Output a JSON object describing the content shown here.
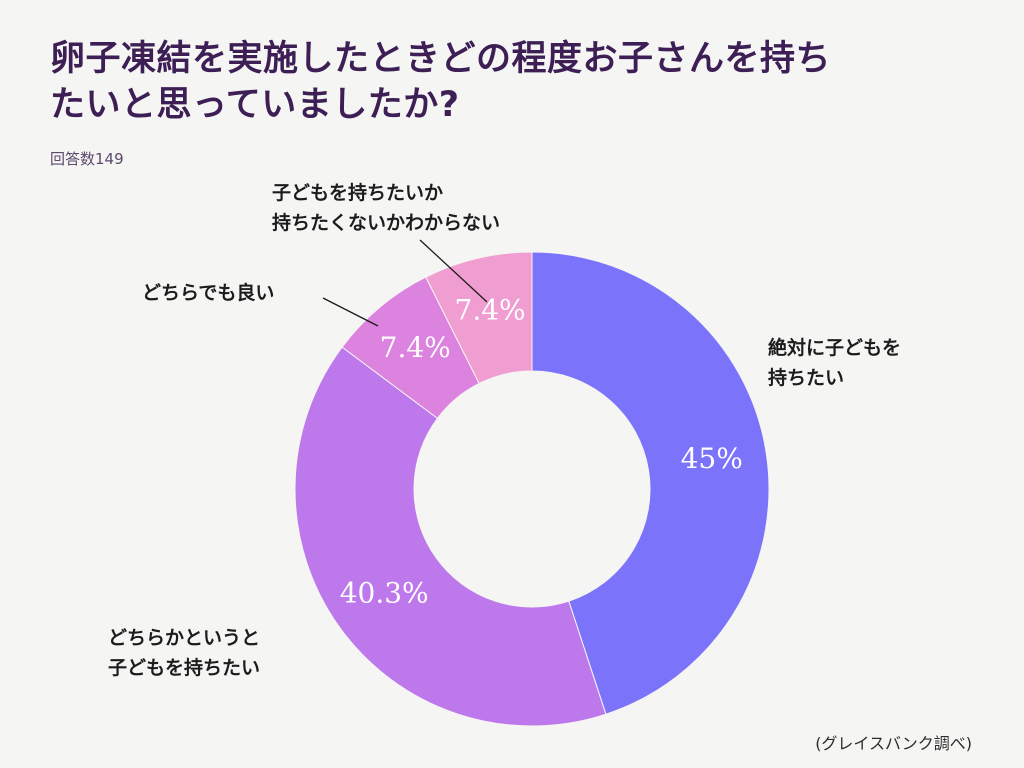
{
  "title_line1": "卵子凍結を実施したときどの程度お子さんを持ち",
  "title_line2": "たいと思っていましたか?",
  "subtitle": "回答数149",
  "source": "(グレイスバンク調べ)",
  "chart_data": {
    "type": "pie",
    "donut": true,
    "categories": [
      "絶対に子どもを持ちたい",
      "どちらかというと子どもを持ちたい",
      "どちらでも良い",
      "子どもを持ちたいか持ちたくないかわからない"
    ],
    "values": [
      45,
      40.3,
      7.4,
      7.4
    ],
    "value_labels": [
      "45%",
      "40.3%",
      "7.4%",
      "7.4%"
    ],
    "colors": [
      "#7b74fb",
      "#bd79ec",
      "#dc82df",
      "#f09ed2"
    ],
    "label_lines": [
      [
        "絶対に子どもを",
        "持ちたい"
      ],
      [
        "どちらかというと",
        "子どもを持ちたい"
      ],
      [
        "どちらでも良い"
      ],
      [
        "子どもを持ちたいか",
        "持ちたくないかわからない"
      ]
    ]
  }
}
